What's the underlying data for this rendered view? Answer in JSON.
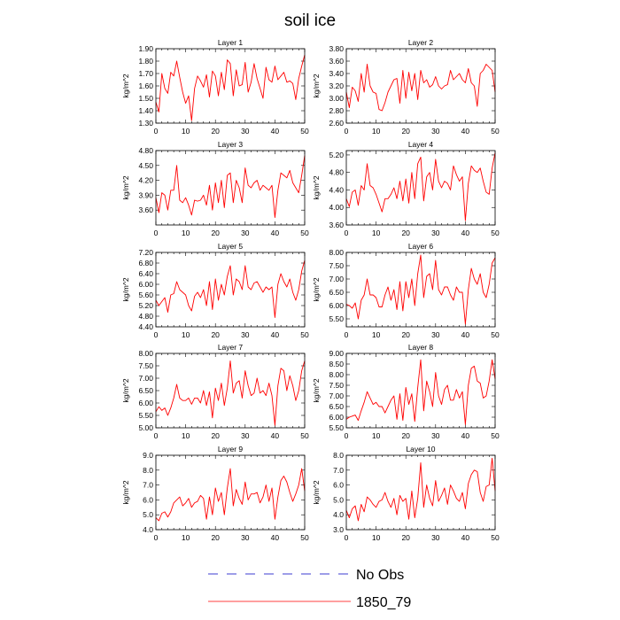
{
  "figure": {
    "title": "soil ice",
    "legend": [
      {
        "label": "No Obs",
        "style": "dashed",
        "color": "#3b3bd0"
      },
      {
        "label": "1850_79",
        "style": "solid",
        "color": "#ff0000"
      }
    ]
  },
  "chart_data": [
    {
      "type": "line",
      "title": "Layer 1",
      "ylabel": "kg/m^2",
      "xlim": [
        0,
        50
      ],
      "ylim": [
        1.3,
        1.9
      ],
      "xticks": [
        0,
        10,
        20,
        30,
        40,
        50
      ],
      "yticks": [
        "1.30",
        "1.40",
        "1.50",
        "1.60",
        "1.70",
        "1.80",
        "1.90"
      ],
      "series": [
        {
          "name": "1850_79",
          "color": "#ff0000",
          "values": [
            1.47,
            1.39,
            1.7,
            1.58,
            1.54,
            1.71,
            1.68,
            1.8,
            1.67,
            1.55,
            1.46,
            1.52,
            1.32,
            1.58,
            1.68,
            1.64,
            1.59,
            1.69,
            1.51,
            1.72,
            1.68,
            1.52,
            1.71,
            1.57,
            1.81,
            1.78,
            1.52,
            1.73,
            1.6,
            1.61,
            1.79,
            1.55,
            1.63,
            1.78,
            1.66,
            1.58,
            1.5,
            1.75,
            1.65,
            1.63,
            1.76,
            1.65,
            1.68,
            1.71,
            1.63,
            1.64,
            1.62,
            1.49,
            1.66,
            1.76,
            1.85
          ]
        }
      ]
    },
    {
      "type": "line",
      "title": "Layer 2",
      "ylabel": "kg/m^2",
      "xlim": [
        0,
        50
      ],
      "ylim": [
        2.6,
        3.8
      ],
      "xticks": [
        0,
        10,
        20,
        30,
        40,
        50
      ],
      "yticks": [
        "2.60",
        "2.80",
        "3.00",
        "3.20",
        "3.40",
        "3.60",
        "3.80"
      ],
      "series": [
        {
          "name": "1850_79",
          "color": "#ff0000",
          "values": [
            3.1,
            2.85,
            3.18,
            3.12,
            2.95,
            3.4,
            3.1,
            3.55,
            3.2,
            3.1,
            3.08,
            2.82,
            2.8,
            2.93,
            3.1,
            3.2,
            3.3,
            3.32,
            2.92,
            3.45,
            3.0,
            3.42,
            3.12,
            3.4,
            2.98,
            3.45,
            3.25,
            3.3,
            3.18,
            3.22,
            3.35,
            3.2,
            3.15,
            3.2,
            3.22,
            3.45,
            3.3,
            3.35,
            3.4,
            3.3,
            3.25,
            3.48,
            3.25,
            3.2,
            2.87,
            3.4,
            3.45,
            3.55,
            3.5,
            3.45,
            3.1
          ]
        }
      ]
    },
    {
      "type": "line",
      "title": "Layer 3",
      "ylabel": "kg/m^2",
      "xlim": [
        0,
        50
      ],
      "ylim": [
        3.3,
        4.8
      ],
      "xticks": [
        0,
        10,
        20,
        30,
        40,
        50
      ],
      "yticks": [
        "3.60",
        "3.90",
        "4.20",
        "4.50",
        "4.80"
      ],
      "series": [
        {
          "name": "1850_79",
          "color": "#ff0000",
          "values": [
            3.85,
            3.55,
            3.95,
            3.9,
            3.6,
            4.0,
            4.0,
            4.5,
            3.8,
            3.75,
            3.85,
            3.7,
            3.5,
            3.8,
            3.78,
            3.8,
            3.9,
            3.7,
            4.1,
            3.6,
            4.15,
            3.75,
            4.2,
            3.65,
            4.3,
            4.35,
            3.75,
            4.2,
            4.05,
            3.75,
            4.45,
            4.1,
            4.05,
            4.15,
            4.2,
            4.0,
            4.1,
            4.05,
            4.0,
            4.1,
            3.45,
            4.0,
            4.35,
            4.3,
            4.25,
            4.4,
            4.15,
            4.05,
            3.95,
            4.3,
            4.7
          ]
        }
      ]
    },
    {
      "type": "line",
      "title": "Layer 4",
      "ylabel": "kg/m^2",
      "xlim": [
        0,
        50
      ],
      "ylim": [
        3.6,
        5.3
      ],
      "xticks": [
        0,
        10,
        20,
        30,
        40,
        50
      ],
      "yticks": [
        "3.60",
        "4.00",
        "4.40",
        "4.80",
        "5.20"
      ],
      "series": [
        {
          "name": "1850_79",
          "color": "#ff0000",
          "values": [
            4.2,
            4.02,
            4.35,
            4.4,
            4.05,
            4.5,
            4.4,
            5.0,
            4.5,
            4.45,
            4.3,
            4.1,
            3.9,
            4.2,
            4.2,
            4.3,
            4.45,
            4.2,
            4.6,
            4.15,
            4.65,
            4.1,
            4.8,
            4.2,
            5.0,
            5.15,
            4.15,
            4.7,
            4.8,
            4.4,
            5.1,
            4.6,
            4.45,
            4.6,
            4.55,
            4.4,
            4.95,
            4.75,
            4.6,
            4.7,
            3.7,
            4.55,
            4.95,
            4.85,
            4.8,
            4.9,
            4.6,
            4.35,
            4.3,
            4.9,
            5.25
          ]
        }
      ]
    },
    {
      "type": "line",
      "title": "Layer 5",
      "ylabel": "kg/m^2",
      "xlim": [
        0,
        50
      ],
      "ylim": [
        4.4,
        7.2
      ],
      "xticks": [
        0,
        10,
        20,
        30,
        40,
        50
      ],
      "yticks": [
        "4.40",
        "4.80",
        "5.20",
        "5.60",
        "6.00",
        "6.40",
        "6.80",
        "7.20"
      ],
      "series": [
        {
          "name": "1850_79",
          "color": "#ff0000",
          "values": [
            5.4,
            5.2,
            5.35,
            5.5,
            4.95,
            5.6,
            5.65,
            6.1,
            5.8,
            5.7,
            5.6,
            5.2,
            5.0,
            5.55,
            5.7,
            5.5,
            5.8,
            5.2,
            6.1,
            5.05,
            6.2,
            5.4,
            6.0,
            5.6,
            6.3,
            6.7,
            5.6,
            6.2,
            6.1,
            5.8,
            6.7,
            5.9,
            5.8,
            6.05,
            6.1,
            5.9,
            5.7,
            5.9,
            5.8,
            5.9,
            4.75,
            6.0,
            6.4,
            6.1,
            5.9,
            6.2,
            5.7,
            5.4,
            5.8,
            6.5,
            6.9
          ]
        }
      ]
    },
    {
      "type": "line",
      "title": "Layer 6",
      "ylabel": "kg/m^2",
      "xlim": [
        0,
        50
      ],
      "ylim": [
        5.2,
        8.0
      ],
      "xticks": [
        0,
        10,
        20,
        30,
        40,
        50
      ],
      "yticks": [
        "5.50",
        "6.00",
        "6.50",
        "7.00",
        "7.50",
        "8.00"
      ],
      "series": [
        {
          "name": "1850_79",
          "color": "#ff0000",
          "values": [
            6.05,
            6.0,
            5.9,
            6.1,
            5.5,
            6.2,
            6.4,
            7.0,
            6.4,
            6.4,
            6.3,
            5.95,
            5.95,
            6.4,
            6.7,
            6.2,
            6.6,
            5.85,
            6.9,
            5.8,
            6.9,
            6.3,
            7.0,
            6.0,
            7.2,
            7.9,
            6.3,
            7.1,
            7.2,
            6.6,
            7.7,
            6.6,
            6.4,
            6.7,
            6.7,
            6.4,
            6.2,
            6.7,
            6.5,
            6.5,
            5.3,
            6.6,
            7.4,
            7.0,
            6.8,
            7.2,
            6.5,
            6.3,
            6.8,
            7.6,
            7.8
          ]
        }
      ]
    },
    {
      "type": "line",
      "title": "Layer 7",
      "ylabel": "kg/m^2",
      "xlim": [
        0,
        50
      ],
      "ylim": [
        5.0,
        8.0
      ],
      "xticks": [
        0,
        10,
        20,
        30,
        40,
        50
      ],
      "yticks": [
        "5.00",
        "5.50",
        "6.00",
        "6.50",
        "7.00",
        "7.50",
        "8.00"
      ],
      "series": [
        {
          "name": "1850_79",
          "color": "#ff0000",
          "values": [
            5.65,
            5.85,
            5.7,
            5.8,
            5.5,
            5.8,
            6.2,
            6.75,
            6.2,
            6.1,
            6.1,
            6.2,
            5.95,
            6.2,
            6.2,
            6.0,
            6.5,
            5.9,
            6.45,
            5.4,
            6.6,
            6.1,
            6.8,
            5.9,
            6.6,
            7.7,
            6.4,
            6.8,
            6.9,
            6.2,
            7.3,
            6.7,
            6.3,
            6.4,
            7.0,
            6.4,
            6.5,
            6.3,
            6.8,
            6.3,
            5.1,
            6.7,
            7.4,
            7.3,
            6.5,
            7.1,
            6.7,
            6.1,
            6.5,
            7.3,
            7.7
          ]
        }
      ]
    },
    {
      "type": "line",
      "title": "Layer 8",
      "ylabel": "kg/m^2",
      "xlim": [
        0,
        50
      ],
      "ylim": [
        5.5,
        9.0
      ],
      "xticks": [
        0,
        10,
        20,
        30,
        40,
        50
      ],
      "yticks": [
        "5.50",
        "6.00",
        "6.50",
        "7.00",
        "7.50",
        "8.00",
        "8.50",
        "9.00"
      ],
      "series": [
        {
          "name": "1850_79",
          "color": "#ff0000",
          "values": [
            5.9,
            6.0,
            6.05,
            6.1,
            5.85,
            6.3,
            6.7,
            7.2,
            6.9,
            6.6,
            6.7,
            6.5,
            6.5,
            6.2,
            6.5,
            6.8,
            7.0,
            5.9,
            7.1,
            5.85,
            7.4,
            6.6,
            7.1,
            5.8,
            7.4,
            8.7,
            6.3,
            7.7,
            7.2,
            6.5,
            8.1,
            7.0,
            6.6,
            7.3,
            7.5,
            6.8,
            6.8,
            7.3,
            6.9,
            7.2,
            5.65,
            7.5,
            8.3,
            8.4,
            7.7,
            7.6,
            6.9,
            7.0,
            7.7,
            8.7,
            7.8
          ]
        }
      ]
    },
    {
      "type": "line",
      "title": "Layer 9",
      "ylabel": "kg/m^2",
      "xlim": [
        0,
        50
      ],
      "ylim": [
        4.0,
        9.0
      ],
      "xticks": [
        0,
        10,
        20,
        30,
        40,
        50
      ],
      "yticks": [
        "4.0",
        "5.0",
        "6.0",
        "7.0",
        "8.0",
        "9.0"
      ],
      "series": [
        {
          "name": "1850_79",
          "color": "#ff0000",
          "values": [
            4.8,
            4.6,
            5.1,
            5.2,
            4.85,
            5.2,
            5.8,
            6.0,
            6.2,
            5.6,
            5.8,
            6.1,
            5.5,
            5.8,
            5.9,
            6.3,
            6.1,
            4.7,
            6.2,
            5.0,
            6.8,
            5.9,
            6.5,
            5.0,
            6.8,
            8.1,
            5.6,
            6.7,
            6.1,
            5.7,
            7.2,
            6.0,
            6.4,
            6.4,
            6.5,
            5.8,
            6.2,
            7.0,
            5.9,
            6.8,
            4.7,
            6.2,
            7.3,
            7.6,
            7.2,
            6.5,
            5.9,
            6.4,
            7.0,
            8.1,
            6.6
          ]
        }
      ]
    },
    {
      "type": "line",
      "title": "Layer 10",
      "ylabel": "kg/m^2",
      "xlim": [
        0,
        50
      ],
      "ylim": [
        3.0,
        8.0
      ],
      "xticks": [
        0,
        10,
        20,
        30,
        40,
        50
      ],
      "yticks": [
        "3.0",
        "4.0",
        "5.0",
        "6.0",
        "7.0",
        "8.0"
      ],
      "series": [
        {
          "name": "1850_79",
          "color": "#ff0000",
          "values": [
            4.3,
            3.8,
            4.4,
            4.6,
            3.6,
            4.7,
            4.2,
            5.2,
            5.0,
            4.7,
            4.5,
            4.9,
            5.0,
            5.5,
            4.9,
            4.5,
            5.1,
            4.0,
            5.3,
            4.9,
            5.1,
            3.7,
            5.6,
            3.8,
            5.1,
            7.5,
            4.5,
            6.0,
            5.1,
            4.6,
            6.3,
            4.9,
            5.3,
            5.8,
            4.7,
            6.0,
            5.6,
            5.1,
            4.9,
            5.5,
            4.4,
            6.1,
            6.7,
            7.0,
            6.9,
            5.5,
            4.9,
            5.9,
            6.0,
            7.8,
            5.6
          ]
        }
      ]
    }
  ]
}
